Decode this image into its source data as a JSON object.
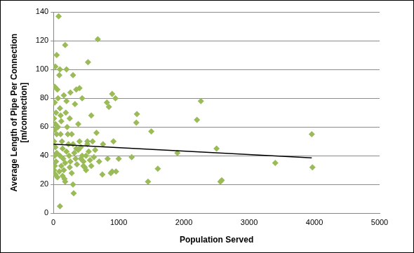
{
  "chart_data": {
    "type": "scatter",
    "x_label": "Population Served",
    "y_label": [
      "Average Length of Pipe Per Connection",
      "[m/connection]"
    ],
    "xlim": [
      0,
      5000
    ],
    "xticks": [
      0,
      1000,
      2000,
      3000,
      4000,
      5000
    ],
    "ylim": [
      0,
      140
    ],
    "yticks": [
      0,
      20,
      40,
      60,
      80,
      100,
      120,
      140
    ],
    "grid": true,
    "series": [
      {
        "type": "scatter",
        "color": "#9bbb59",
        "marker": "diamond",
        "x": [
          80,
          180,
          680,
          530,
          300,
          50,
          30,
          900,
          950,
          1280,
          1270,
          2260,
          2200,
          1500,
          2500,
          3960,
          3970,
          3400,
          2580,
          2560,
          1450,
          1600,
          1900,
          1200,
          1000,
          920,
          820,
          850,
          760,
          700,
          750,
          960,
          900,
          880,
          830,
          580,
          520,
          100,
          400,
          350,
          330,
          20,
          20,
          40,
          10,
          30,
          20,
          50,
          10,
          30,
          50,
          20,
          40,
          20,
          10,
          30,
          60,
          70,
          90,
          100,
          110,
          120,
          110,
          130,
          140,
          100,
          150,
          120,
          160,
          140,
          170,
          180,
          200,
          190,
          210,
          220,
          230,
          200,
          240,
          260,
          250,
          280,
          300,
          310,
          320,
          340,
          360,
          380,
          400,
          420,
          440,
          460,
          480,
          500,
          500,
          520,
          540,
          560,
          580,
          600,
          620,
          640,
          660,
          440,
          380,
          250,
          160,
          260,
          200,
          100,
          60,
          280,
          350,
          420,
          460,
          300,
          180,
          90,
          70
        ],
        "values": [
          137,
          117,
          121,
          105,
          96,
          110,
          102,
          83,
          80,
          69,
          63,
          78,
          65,
          57,
          45,
          55,
          32,
          35,
          23,
          22,
          22,
          31,
          42,
          39,
          38,
          50,
          77,
          74,
          48,
          36,
          27,
          29,
          29,
          28,
          38,
          68,
          50,
          5,
          87,
          86,
          76,
          88,
          77,
          70,
          66,
          62,
          58,
          55,
          50,
          46,
          42,
          40,
          36,
          33,
          30,
          27,
          25,
          80,
          96,
          73,
          68,
          64,
          55,
          50,
          45,
          40,
          38,
          33,
          30,
          26,
          24,
          22,
          78,
          70,
          60,
          55,
          48,
          43,
          40,
          36,
          32,
          28,
          20,
          14,
          42,
          38,
          34,
          44,
          50,
          46,
          40,
          36,
          32,
          30,
          40,
          48,
          43,
          37,
          33,
          50,
          39,
          44,
          56,
          80,
          62,
          66,
          82,
          84,
          100,
          100,
          86,
          55,
          45,
          38,
          33,
          48,
          35,
          29,
          60
        ]
      },
      {
        "type": "line",
        "color": "#000000",
        "line_style": "solid",
        "x": [
          0,
          3960
        ],
        "values": [
          48,
          38.5
        ]
      }
    ]
  }
}
